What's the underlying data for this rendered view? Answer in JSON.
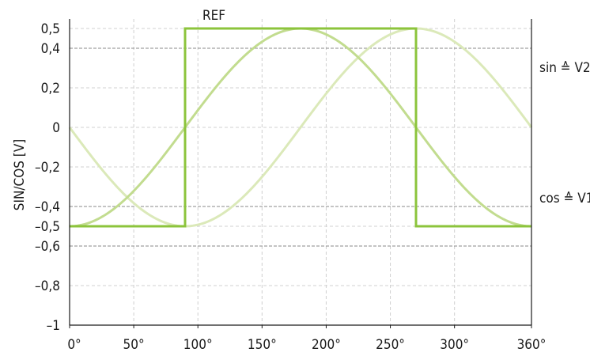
{
  "chart_data": {
    "type": "line",
    "title": "",
    "xlabel": "",
    "ylabel": "SIN/COS [V]",
    "xlim": [
      0,
      360
    ],
    "ylim": [
      -1,
      0.55
    ],
    "x_ticks": [
      {
        "value": 0,
        "label": "0°"
      },
      {
        "value": 50,
        "label": "50°"
      },
      {
        "value": 100,
        "label": "100°"
      },
      {
        "value": 150,
        "label": "150°"
      },
      {
        "value": 200,
        "label": "200°"
      },
      {
        "value": 250,
        "label": "250°"
      },
      {
        "value": 300,
        "label": "300°"
      },
      {
        "value": 360,
        "label": "360°"
      }
    ],
    "y_ticks": [
      {
        "value": 0.5,
        "label": "0,5"
      },
      {
        "value": 0.4,
        "label": "0,4"
      },
      {
        "value": 0.2,
        "label": "0,2"
      },
      {
        "value": 0,
        "label": "0"
      },
      {
        "value": -0.2,
        "label": "–0,2"
      },
      {
        "value": -0.4,
        "label": "–0,4"
      },
      {
        "value": -0.5,
        "label": "–0,5"
      },
      {
        "value": -0.6,
        "label": "–0,6"
      },
      {
        "value": -0.8,
        "label": "–0,8"
      },
      {
        "value": -1,
        "label": "–1"
      }
    ],
    "dashed_grid_y": [
      0.4,
      -0.4,
      -0.6
    ],
    "grid": true,
    "series": [
      {
        "name": "sin ≙ V2",
        "color": "#dbe9b9",
        "style": "curve",
        "x": [
          0,
          45,
          90,
          135,
          180,
          225,
          270,
          315,
          360
        ],
        "y": [
          0,
          -0.354,
          -0.5,
          -0.354,
          0,
          0.354,
          0.5,
          0.354,
          0
        ]
      },
      {
        "name": "cos ≙ V1",
        "color": "#c2dc8f",
        "style": "curve",
        "x": [
          0,
          45,
          90,
          135,
          180,
          225,
          270,
          315,
          360
        ],
        "y": [
          -0.5,
          -0.354,
          0,
          0.354,
          0.5,
          0.354,
          0,
          -0.354,
          -0.5
        ]
      },
      {
        "name": "REF",
        "color": "#8cc43c",
        "style": "step",
        "x": [
          0,
          90,
          90,
          270,
          270,
          360
        ],
        "y": [
          -0.5,
          -0.5,
          0.5,
          0.5,
          -0.5,
          -0.5
        ]
      }
    ],
    "annotations": [
      {
        "text": "REF",
        "near": "top"
      },
      {
        "text": "sin ≙ V2",
        "near": "right-upper"
      },
      {
        "text": "cos ≙ V1",
        "near": "right-lower"
      }
    ]
  }
}
